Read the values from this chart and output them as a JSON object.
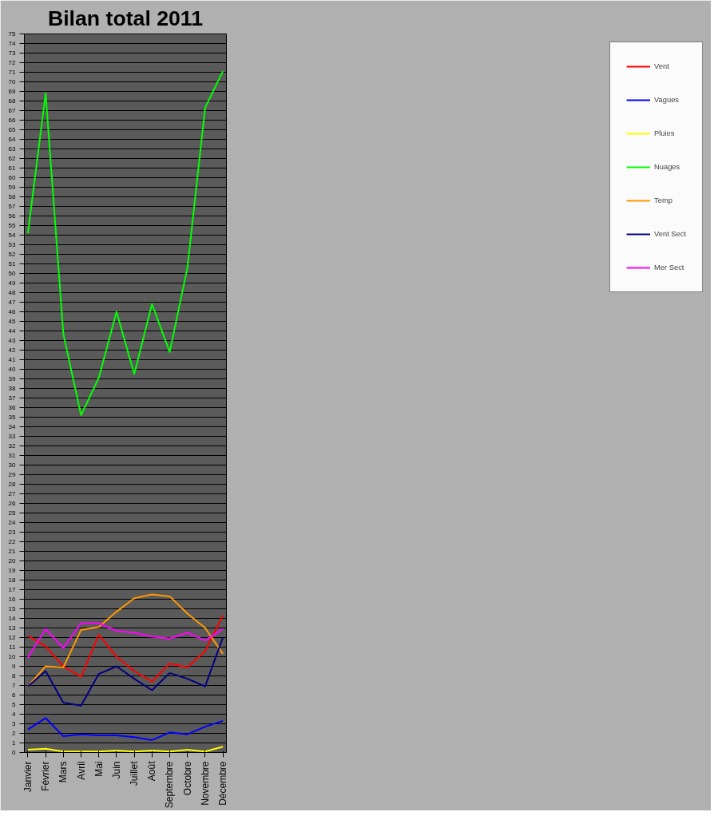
{
  "chart_data": {
    "type": "line",
    "title": "Bilan total 2011",
    "categories": [
      "Janvier",
      "Février",
      "Mars",
      "Avril",
      "Mai",
      "Juin",
      "Juillet",
      "Août",
      "Septembre",
      "Octobre",
      "Novembre",
      "Décembre"
    ],
    "series": [
      {
        "name": "Vent",
        "color": "#ff0000",
        "values": [
          12.2,
          11.1,
          9.0,
          7.9,
          12.3,
          10.0,
          8.5,
          7.4,
          9.3,
          8.9,
          10.6,
          14.3
        ]
      },
      {
        "name": "Vagues",
        "color": "#0000ff",
        "values": [
          2.4,
          3.6,
          1.7,
          1.9,
          1.8,
          1.8,
          1.6,
          1.3,
          2.1,
          1.9,
          2.7,
          3.3
        ]
      },
      {
        "name": "Pluies",
        "color": "#ffff00",
        "values": [
          0.3,
          0.4,
          0.1,
          0.1,
          0.1,
          0.2,
          0.1,
          0.2,
          0.1,
          0.3,
          0.1,
          0.6
        ]
      },
      {
        "name": "Nuages",
        "color": "#00ff00",
        "values": [
          54.2,
          68.8,
          43.7,
          35.2,
          39.1,
          46.0,
          39.5,
          46.8,
          41.8,
          50.6,
          67.3,
          71.1
        ]
      },
      {
        "name": "Temp",
        "color": "#ff9900",
        "values": [
          6.9,
          9.0,
          8.9,
          12.8,
          13.1,
          14.7,
          16.1,
          16.5,
          16.3,
          14.5,
          13.0,
          10.3
        ]
      },
      {
        "name": "Vent Sect",
        "color": "#000080",
        "values": [
          6.9,
          8.5,
          5.2,
          4.9,
          8.2,
          9.0,
          7.7,
          6.5,
          8.3,
          7.7,
          6.9,
          12.0
        ]
      },
      {
        "name": "Mer Sect",
        "color": "#ff00ff",
        "values": [
          9.9,
          12.9,
          10.9,
          13.5,
          13.5,
          12.7,
          12.5,
          12.1,
          11.9,
          12.5,
          11.7,
          12.9
        ]
      }
    ],
    "ylim": [
      0,
      75
    ],
    "yticks": [
      0,
      1,
      2,
      3,
      4,
      5,
      6,
      7,
      8,
      9,
      10,
      11,
      12,
      13,
      14,
      15,
      16,
      17,
      18,
      19,
      20,
      21,
      22,
      23,
      24,
      25,
      26,
      27,
      28,
      29,
      30,
      31,
      32,
      33,
      34,
      35,
      36,
      37,
      38,
      39,
      40,
      41,
      42,
      43,
      44,
      45,
      46,
      47,
      48,
      49,
      50,
      51,
      52,
      53,
      54,
      55,
      56,
      57,
      58,
      59,
      60,
      61,
      62,
      63,
      64,
      65,
      66,
      67,
      68,
      69,
      70,
      71,
      72,
      73,
      74,
      75
    ],
    "grid": "y",
    "legend": "right",
    "marker": "none",
    "line_style": "solid"
  }
}
